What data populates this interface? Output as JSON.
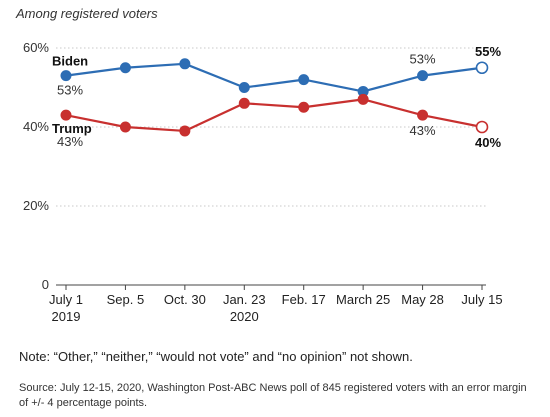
{
  "subtitle": "Among registered voters",
  "note": "Note: “Other,” “neither,” “would not vote” and “no opinion” not shown.",
  "source": "Source: July 12-15, 2020, Washington Post-ABC News poll of 845 registered voters with an error margin of +/- 4 percentage points.",
  "chart_data": {
    "type": "line",
    "categories": [
      "July 1 2019",
      "Sep. 5",
      "Oct. 30",
      "Jan. 23 2020",
      "Feb. 17",
      "March 25",
      "May 28",
      "July 15"
    ],
    "tick_labels": [
      [
        "July 1",
        "2019"
      ],
      [
        "Sep. 5"
      ],
      [
        "Oct. 30"
      ],
      [
        "Jan. 23",
        "2020"
      ],
      [
        "Feb. 17"
      ],
      [
        "March 25"
      ],
      [
        "May 28"
      ],
      [
        "July 15"
      ]
    ],
    "y_ticks": [
      {
        "value": 0,
        "label": "0"
      },
      {
        "value": 20,
        "label": "20%"
      },
      {
        "value": 40,
        "label": "40%"
      },
      {
        "value": 60,
        "label": "60%"
      }
    ],
    "ylim": [
      0,
      60
    ],
    "grid": true,
    "series": [
      {
        "name": "Biden",
        "color": "#2d6db4",
        "values": [
          53,
          55,
          56,
          50,
          52,
          49,
          53,
          55
        ],
        "labels": [
          {
            "index": 0,
            "text": "53%"
          },
          {
            "index": 6,
            "text": "53%"
          },
          {
            "index": 7,
            "text": "55%",
            "bold": true
          }
        ]
      },
      {
        "name": "Trump",
        "color": "#c8302f",
        "values": [
          43,
          40,
          39,
          46,
          45,
          47,
          43,
          40
        ],
        "labels": [
          {
            "index": 0,
            "text": "43%"
          },
          {
            "index": 6,
            "text": "43%"
          },
          {
            "index": 7,
            "text": "40%",
            "bold": true
          }
        ]
      }
    ]
  }
}
